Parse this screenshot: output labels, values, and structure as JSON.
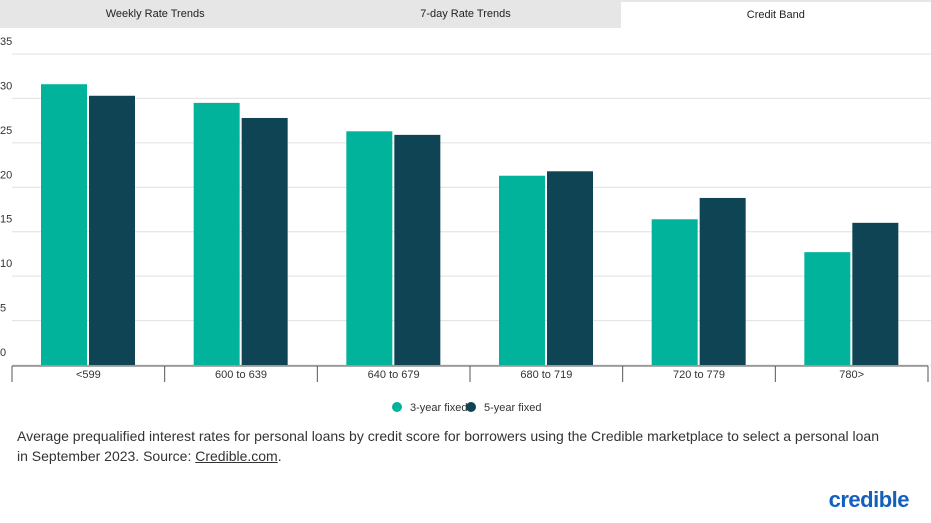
{
  "tabs": [
    "Weekly Rate Trends",
    "7-day Rate Trends",
    "Credit Band"
  ],
  "active_tab": 2,
  "chart_data": {
    "type": "bar",
    "categories": [
      "<599",
      "600 to 639",
      "640 to 679",
      "680 to 719",
      "720 to 779",
      "780>"
    ],
    "series": [
      {
        "name": "3-year fixed",
        "color": "#00b39a",
        "values": [
          31.6,
          29.5,
          26.3,
          21.3,
          16.4,
          12.7
        ]
      },
      {
        "name": "5-year fixed",
        "color": "#0e4453",
        "values": [
          30.3,
          27.8,
          25.9,
          21.8,
          18.8,
          16.0
        ]
      }
    ],
    "ylim": [
      0,
      35
    ],
    "yticks": [
      0,
      5,
      10,
      15,
      20,
      25,
      30,
      35
    ],
    "grid": true
  },
  "caption": {
    "text": "Average prequalified interest rates for personal loans by credit score for borrowers using the Credible marketplace to select a personal loan in September 2023. Source: ",
    "link": "Credible.com",
    "end": "."
  },
  "logo": "credible"
}
